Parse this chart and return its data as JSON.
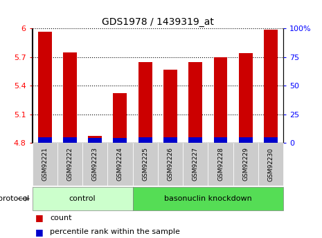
{
  "title": "GDS1978 / 1439319_at",
  "samples": [
    "GSM92221",
    "GSM92222",
    "GSM92223",
    "GSM92224",
    "GSM92225",
    "GSM92226",
    "GSM92227",
    "GSM92228",
    "GSM92229",
    "GSM92230"
  ],
  "count_values": [
    5.97,
    5.75,
    4.87,
    5.32,
    5.65,
    5.57,
    5.65,
    5.7,
    5.74,
    5.99
  ],
  "pct_values_right": [
    5,
    5,
    4,
    4,
    5,
    5,
    5,
    5,
    5,
    5
  ],
  "ylim_left": [
    4.8,
    6.0
  ],
  "ylim_right": [
    0,
    100
  ],
  "yticks_left": [
    4.8,
    5.1,
    5.4,
    5.7,
    6.0
  ],
  "yticks_right": [
    0,
    25,
    50,
    75,
    100
  ],
  "ytick_labels_left": [
    "4.8",
    "5.1",
    "5.4",
    "5.7",
    "6"
  ],
  "ytick_labels_right": [
    "0",
    "25",
    "50",
    "75",
    "100%"
  ],
  "bar_color_red": "#cc0000",
  "bar_color_blue": "#0000cc",
  "bar_width": 0.55,
  "control_label": "control",
  "knockdown_label": "basonuclin knockdown",
  "control_color": "#ccffcc",
  "knockdown_color": "#55dd55",
  "protocol_label": "protocol",
  "legend_count": "count",
  "legend_percentile": "percentile rank within the sample",
  "tick_bg_color": "#cccccc"
}
